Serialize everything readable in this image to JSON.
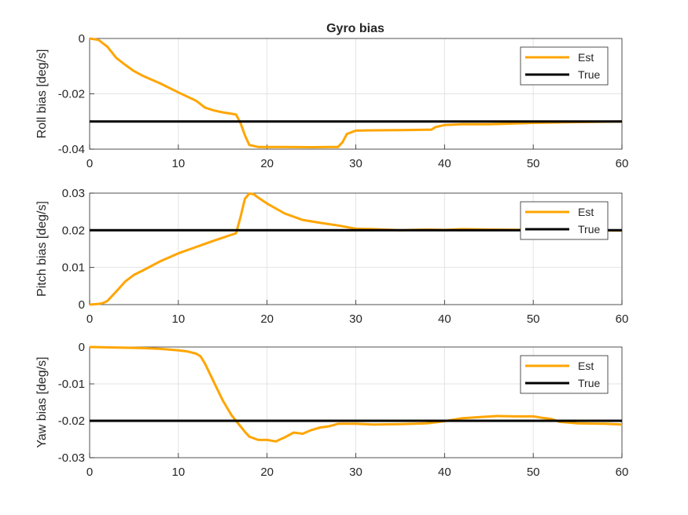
{
  "title": "Gyro bias",
  "legend": {
    "placement": "top-right",
    "est_color": "#FFA500",
    "true_color": "#000000"
  },
  "chart_data": [
    {
      "type": "line",
      "title": "Gyro bias",
      "xlabel": "",
      "ylabel": "Roll bias [deg/s]",
      "xlim": [
        0,
        60
      ],
      "ylim": [
        -0.04,
        0
      ],
      "xticks": [
        0,
        10,
        20,
        30,
        40,
        50,
        60
      ],
      "yticks": [
        0,
        -0.02,
        -0.04
      ],
      "ytick_labels": [
        "0",
        "-0.02",
        "-0.04"
      ],
      "grid": true,
      "series": [
        {
          "name": "Est",
          "color": "#FFA500",
          "x": [
            0,
            1,
            2,
            3,
            4,
            5,
            6,
            8,
            10,
            12,
            13,
            14,
            15,
            16,
            16.5,
            17,
            17.5,
            18,
            19,
            20,
            22,
            25,
            27,
            28,
            28.5,
            29,
            30,
            32,
            35,
            38,
            38.5,
            39,
            40,
            42,
            45,
            50,
            55,
            60
          ],
          "y": [
            0,
            -0.0005,
            -0.003,
            -0.007,
            -0.0095,
            -0.0118,
            -0.0135,
            -0.0163,
            -0.0195,
            -0.0225,
            -0.025,
            -0.026,
            -0.0267,
            -0.0272,
            -0.0275,
            -0.0305,
            -0.035,
            -0.0385,
            -0.0392,
            -0.0392,
            -0.0392,
            -0.0393,
            -0.0392,
            -0.0392,
            -0.0375,
            -0.0345,
            -0.0333,
            -0.0332,
            -0.0331,
            -0.033,
            -0.033,
            -0.032,
            -0.0313,
            -0.031,
            -0.031,
            -0.0305,
            -0.0302,
            -0.03
          ]
        },
        {
          "name": "True",
          "color": "#000000",
          "x": [
            0,
            60
          ],
          "y": [
            -0.03,
            -0.03
          ]
        }
      ]
    },
    {
      "type": "line",
      "xlabel": "",
      "ylabel": "Pitch bias [deg/s]",
      "xlim": [
        0,
        60
      ],
      "ylim": [
        0,
        0.03
      ],
      "xticks": [
        0,
        10,
        20,
        30,
        40,
        50,
        60
      ],
      "yticks": [
        0,
        0.01,
        0.02,
        0.03
      ],
      "ytick_labels": [
        "0",
        "0.01",
        "0.02",
        "0.03"
      ],
      "grid": true,
      "series": [
        {
          "name": "Est",
          "color": "#FFA500",
          "x": [
            0,
            1,
            1.5,
            2,
            3,
            4,
            5,
            6,
            8,
            10,
            12,
            14,
            16,
            16.5,
            17,
            17.5,
            18,
            18.5,
            19,
            20,
            22,
            24,
            26,
            28,
            30,
            32,
            35,
            38,
            40,
            42,
            45,
            50,
            52,
            55,
            60
          ],
          "y": [
            0,
            0.0002,
            0.0004,
            0.001,
            0.0035,
            0.0062,
            0.008,
            0.0092,
            0.0117,
            0.0138,
            0.0155,
            0.0172,
            0.0188,
            0.0192,
            0.0235,
            0.0285,
            0.0299,
            0.0297,
            0.0288,
            0.0272,
            0.0245,
            0.0228,
            0.022,
            0.0213,
            0.0204,
            0.0203,
            0.02,
            0.0202,
            0.0201,
            0.0203,
            0.0202,
            0.0201,
            0.02,
            0.0201,
            0.0199
          ]
        },
        {
          "name": "True",
          "color": "#000000",
          "x": [
            0,
            60
          ],
          "y": [
            0.02,
            0.02
          ]
        }
      ]
    },
    {
      "type": "line",
      "xlabel": "",
      "ylabel": "Yaw bias [deg/s]",
      "xlim": [
        0,
        60
      ],
      "ylim": [
        -0.03,
        0
      ],
      "xticks": [
        0,
        10,
        20,
        30,
        40,
        50,
        60
      ],
      "yticks": [
        0,
        -0.01,
        -0.02,
        -0.03
      ],
      "ytick_labels": [
        "0",
        "-0.01",
        "-0.02",
        "-0.03"
      ],
      "grid": true,
      "series": [
        {
          "name": "Est",
          "color": "#FFA500",
          "x": [
            0,
            2,
            4,
            6,
            8,
            10,
            11,
            12,
            12.5,
            13,
            14,
            15,
            16,
            17,
            17.5,
            18,
            19,
            20,
            21,
            21.5,
            22,
            23,
            24,
            25,
            26,
            27,
            28,
            30,
            32,
            35,
            38,
            40,
            42,
            44,
            46,
            48,
            50,
            51,
            52,
            53,
            55,
            58,
            60
          ],
          "y": [
            0,
            -0.0001,
            -0.0002,
            -0.0003,
            -0.0005,
            -0.0009,
            -0.0012,
            -0.0018,
            -0.0025,
            -0.0045,
            -0.0095,
            -0.0145,
            -0.0185,
            -0.0215,
            -0.023,
            -0.0243,
            -0.0252,
            -0.0252,
            -0.0256,
            -0.025,
            -0.0245,
            -0.0232,
            -0.0235,
            -0.0225,
            -0.0218,
            -0.0215,
            -0.0208,
            -0.0208,
            -0.021,
            -0.0209,
            -0.0207,
            -0.0201,
            -0.0193,
            -0.019,
            -0.0187,
            -0.0188,
            -0.0188,
            -0.0192,
            -0.0195,
            -0.0203,
            -0.0207,
            -0.0208,
            -0.021
          ]
        },
        {
          "name": "True",
          "color": "#000000",
          "x": [
            0,
            60
          ],
          "y": [
            -0.02,
            -0.02
          ]
        }
      ]
    }
  ]
}
